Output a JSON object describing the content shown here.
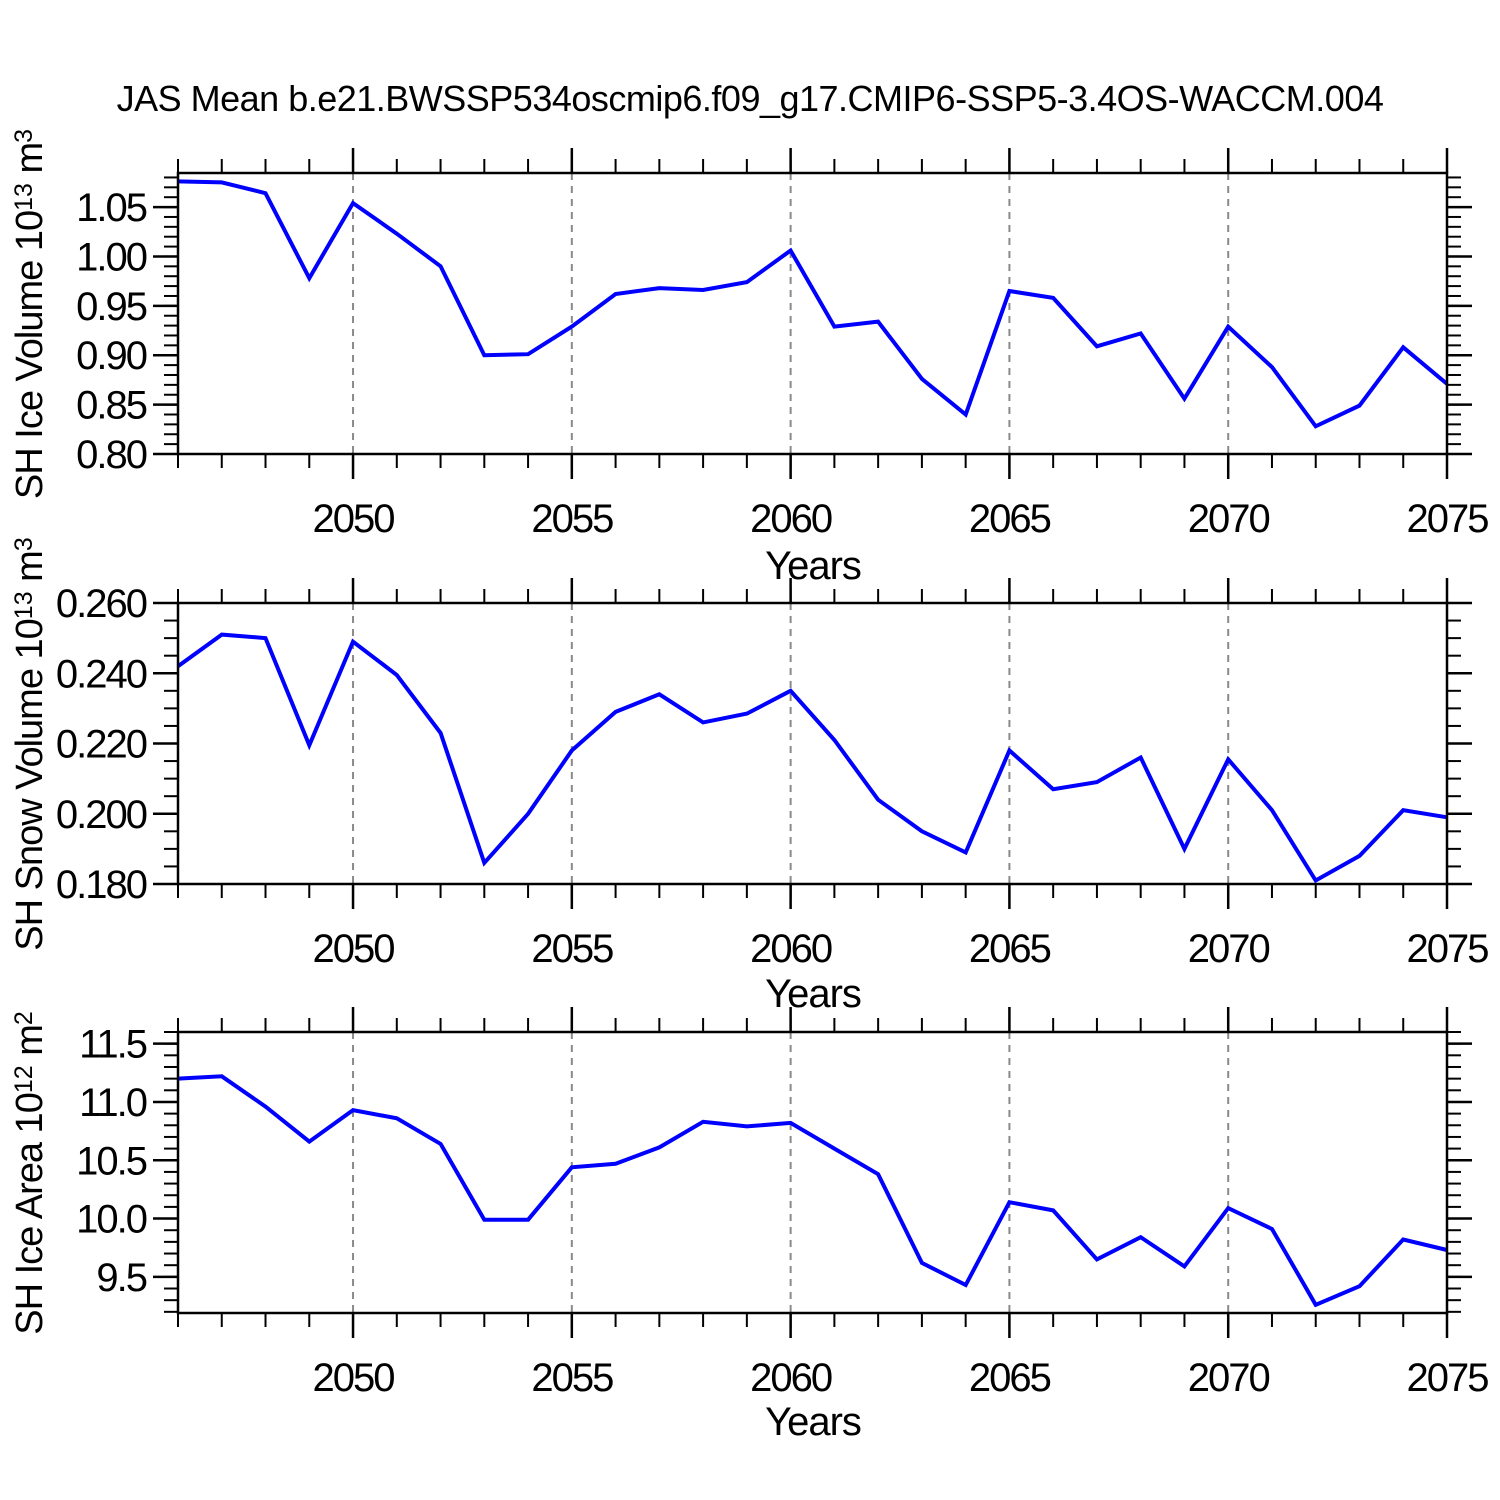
{
  "chart_data": {
    "type": "line",
    "title": "JAS Mean b.e21.BWSSP534oscmip6.f09_g17.CMIP6-SSP5-3.4OS-WACCM.004",
    "xlabel": "Years",
    "line_color": "#0000ff",
    "grid_color": "#8a8a8a",
    "axis_color": "#000000",
    "xlim": [
      2046,
      2075
    ],
    "x_minor_step": 1,
    "x_major_ticks": [
      {
        "value": 2050,
        "label": "2050"
      },
      {
        "value": 2055,
        "label": "2055"
      },
      {
        "value": 2060,
        "label": "2060"
      },
      {
        "value": 2065,
        "label": "2065"
      },
      {
        "value": 2070,
        "label": "2070"
      },
      {
        "value": 2075,
        "label": "2075"
      }
    ],
    "vertical_gridlines": [
      2050,
      2055,
      2060,
      2065,
      2070
    ],
    "x": [
      2046,
      2047,
      2048,
      2049,
      2050,
      2051,
      2052,
      2053,
      2054,
      2055,
      2056,
      2057,
      2058,
      2059,
      2060,
      2061,
      2062,
      2063,
      2064,
      2065,
      2066,
      2067,
      2068,
      2069,
      2070,
      2071,
      2072,
      2073,
      2074,
      2075
    ],
    "panels": [
      {
        "name": "sh-ice-volume",
        "ylabel": {
          "pre": "SH Ice Volume 10",
          "sup1": "13",
          "mid": " m",
          "sup2": "3"
        },
        "ylabel_plain": "SH Ice Volume 10^13 m^3",
        "ylim": [
          0.8,
          1.0845
        ],
        "y_minor_step": 0.01,
        "y_ticks": [
          {
            "value": 1.05,
            "label": "1.05"
          },
          {
            "value": 1.0,
            "label": "1.00"
          },
          {
            "value": 0.95,
            "label": "0.95"
          },
          {
            "value": 0.9,
            "label": "0.90"
          },
          {
            "value": 0.85,
            "label": "0.85"
          },
          {
            "value": 0.8,
            "label": "0.80"
          }
        ],
        "values": [
          1.076,
          1.075,
          1.064,
          0.978,
          1.054,
          1.023,
          0.99,
          0.9,
          0.901,
          0.929,
          0.962,
          0.968,
          0.966,
          0.974,
          1.006,
          0.929,
          0.934,
          0.876,
          0.84,
          0.965,
          0.958,
          0.909,
          0.922,
          0.856,
          0.929,
          0.888,
          0.828,
          0.849,
          0.908,
          0.871
        ]
      },
      {
        "name": "sh-snow-volume",
        "ylabel": {
          "pre": "SH Snow Volume 10",
          "sup1": "13",
          "mid": " m",
          "sup2": "3"
        },
        "ylabel_plain": "SH Snow Volume 10^13 m^3",
        "ylim": [
          0.18,
          0.26
        ],
        "y_minor_step": 0.005,
        "y_ticks": [
          {
            "value": 0.26,
            "label": "0.260"
          },
          {
            "value": 0.24,
            "label": "0.240"
          },
          {
            "value": 0.22,
            "label": "0.220"
          },
          {
            "value": 0.2,
            "label": "0.200"
          },
          {
            "value": 0.18,
            "label": "0.180"
          }
        ],
        "values": [
          0.242,
          0.251,
          0.25,
          0.2195,
          0.249,
          0.2395,
          0.223,
          0.186,
          0.2,
          0.218,
          0.229,
          0.234,
          0.226,
          0.2285,
          0.235,
          0.221,
          0.204,
          0.195,
          0.189,
          0.218,
          0.207,
          0.209,
          0.216,
          0.19,
          0.2155,
          0.201,
          0.181,
          0.188,
          0.201,
          0.199
        ]
      },
      {
        "name": "sh-ice-area",
        "ylabel": {
          "pre": "SH Ice Area 10",
          "sup1": "12",
          "mid": " m",
          "sup2": "2"
        },
        "ylabel_plain": "SH Ice Area 10^12 m^2",
        "ylim": [
          9.19,
          11.6
        ],
        "y_minor_step": 0.1,
        "y_ticks": [
          {
            "value": 11.5,
            "label": "11.5"
          },
          {
            "value": 11.0,
            "label": "11.0"
          },
          {
            "value": 10.5,
            "label": "10.5"
          },
          {
            "value": 10.0,
            "label": "10.0"
          },
          {
            "value": 9.5,
            "label": "9.5"
          }
        ],
        "values": [
          11.2,
          11.22,
          10.96,
          10.66,
          10.93,
          10.86,
          10.64,
          9.99,
          9.99,
          10.44,
          10.47,
          10.61,
          10.83,
          10.79,
          10.82,
          10.6,
          10.38,
          9.62,
          9.43,
          10.14,
          10.07,
          9.65,
          9.84,
          9.59,
          10.09,
          9.91,
          9.26,
          9.42,
          9.82,
          9.73
        ]
      }
    ]
  }
}
